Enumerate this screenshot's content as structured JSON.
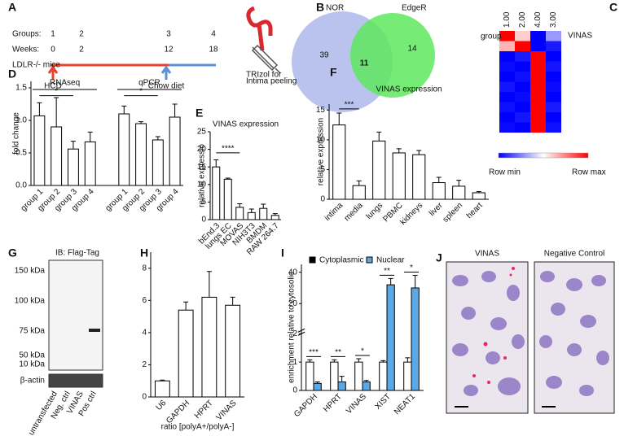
{
  "panel_labels": [
    "A",
    "B",
    "C",
    "D",
    "E",
    "F",
    "G",
    "H",
    "I",
    "J"
  ],
  "timeline": {
    "groups_label": "Groups:",
    "groups": [
      "1",
      "2",
      "3",
      "4"
    ],
    "weeks_label": "Weeks:",
    "weeks": [
      "0",
      "2",
      "12",
      "18"
    ],
    "mice": "LDLR-/- mice",
    "hcd": "HCD",
    "chow": "Chow diet",
    "trizol": "TRIzol for",
    "intima": "Intima peeling"
  },
  "venn": {
    "sets": [
      "NOR",
      "EdgeR"
    ],
    "only_a": 39,
    "both": 11,
    "only_b": 14
  },
  "heatmap": {
    "row_label": "group",
    "columns": [
      "1.00",
      "2.00",
      "4.00",
      "3.00"
    ],
    "gene": "VINAS",
    "min_label": "Row min",
    "max_label": "Row max",
    "colors": [
      "#0000ff",
      "#ffffff",
      "#ff0000"
    ],
    "values": [
      [
        1,
        0.6,
        0,
        0.3
      ],
      [
        0.65,
        1,
        0,
        0.05
      ],
      [
        0,
        0.05,
        1,
        0
      ],
      [
        0.02,
        0,
        1,
        0.04
      ],
      [
        0,
        0.03,
        1,
        0
      ],
      [
        0.04,
        0,
        1,
        0.02
      ],
      [
        0,
        0.02,
        1,
        0
      ],
      [
        0.03,
        0,
        1,
        0.05
      ],
      [
        0,
        0.04,
        1,
        0
      ],
      [
        0.02,
        0,
        1,
        0.03
      ]
    ]
  },
  "blot": {
    "title": "IB: Flag-Tag",
    "markers": [
      "150 kDa",
      "100 kDa",
      "75 kDa",
      "50 kDa",
      "10 kDa"
    ],
    "loading": "β-actin",
    "lanes": [
      "untransfected",
      "Neg. ctrl",
      "VINAS",
      "Pos ctrl"
    ]
  },
  "images": {
    "left": "VINAS",
    "right": "Negative Control"
  },
  "chart_data": [
    {
      "type": "bar",
      "ylabel": "fold change",
      "group_labels": [
        "RNAseq",
        "qPCR"
      ],
      "categories": [
        "group 1",
        "group 2",
        "group 3",
        "group 4",
        "group 1",
        "group 2",
        "group 3",
        "group 4"
      ],
      "values": [
        1.07,
        0.9,
        0.56,
        0.67,
        1.1,
        0.95,
        0.7,
        1.05
      ],
      "errors": [
        0.2,
        0.45,
        0.12,
        0.15,
        0.12,
        0.03,
        0.05,
        0.2
      ],
      "color": "#ffffff",
      "annotations": [
        "*",
        "*"
      ],
      "ylim": [
        0,
        1.6
      ],
      "yticks": [
        {
          "value": 0,
          "label": "0.0"
        },
        {
          "value": 0.5,
          "label": "0.5"
        },
        {
          "value": 1,
          "label": "1.0"
        },
        {
          "value": 1.5,
          "label": "1.5"
        }
      ]
    },
    {
      "type": "bar",
      "title": "VINAS expression",
      "ylabel": "relative expressio",
      "categories": [
        "bEnd.3",
        "lungs EC",
        "MOVAS",
        "NIH3T3",
        "BMDM",
        "RAW 264.7"
      ],
      "values": [
        15,
        11.5,
        3.5,
        2,
        3.2,
        1.2
      ],
      "errors": [
        2,
        0.3,
        1,
        1,
        1.2,
        0.5
      ],
      "color": "#ffffff",
      "annotations": [
        "****"
      ],
      "ylim": [
        0,
        25
      ],
      "yticks": [
        0,
        5,
        10,
        15,
        20,
        25
      ]
    },
    {
      "type": "bar",
      "title": "VINAS expression",
      "ylabel": "relative expression",
      "categories": [
        "intima",
        "media",
        "lungs",
        "PBMC",
        "kidneys",
        "liver",
        "spleen",
        "heart"
      ],
      "values": [
        12.5,
        2.3,
        9.8,
        7.8,
        7.5,
        2.8,
        2.2,
        1.1
      ],
      "errors": [
        2,
        0.8,
        1.5,
        0.7,
        0.7,
        0.9,
        1,
        0.2
      ],
      "color": "#ffffff",
      "annotations": [
        "***"
      ],
      "ylim": [
        0,
        16
      ],
      "yticks": [
        0,
        5,
        10,
        15
      ]
    },
    {
      "type": "bar",
      "xlabel": "ratio [polyA+/polyA-]",
      "categories": [
        "U6",
        "GAPDH",
        "HPRT",
        "VINAS"
      ],
      "values": [
        1,
        5.4,
        6.2,
        5.7
      ],
      "errors": [
        0.05,
        0.5,
        1.6,
        0.5
      ],
      "color": "#ffffff",
      "ylim": [
        0,
        9
      ],
      "yticks": [
        0,
        2,
        4,
        6,
        8
      ]
    },
    {
      "type": "bar",
      "ylabel": "enrichment relative to cytosolic",
      "categories": [
        "GAPDH",
        "HPRT",
        "VINAS",
        "XIST",
        "NEAT1"
      ],
      "series": [
        {
          "name": "Cytoplasmic",
          "color": "#ffffff",
          "values": [
            1,
            1,
            1,
            1,
            1
          ],
          "errors": [
            0.08,
            0.08,
            0.12,
            0.05,
            0.15
          ]
        },
        {
          "name": "Nuclear",
          "color": "#5aa9e6",
          "values": [
            0.25,
            0.3,
            0.3,
            32,
            30
          ],
          "errors": [
            0.05,
            0.2,
            0.05,
            4,
            8
          ]
        }
      ],
      "annotations": [
        "***",
        "**",
        "*",
        "**",
        "*"
      ],
      "ylim": [
        0,
        45
      ],
      "ybreak": [
        2,
        5
      ],
      "yticks": [
        0,
        1,
        2,
        20,
        40
      ]
    }
  ]
}
